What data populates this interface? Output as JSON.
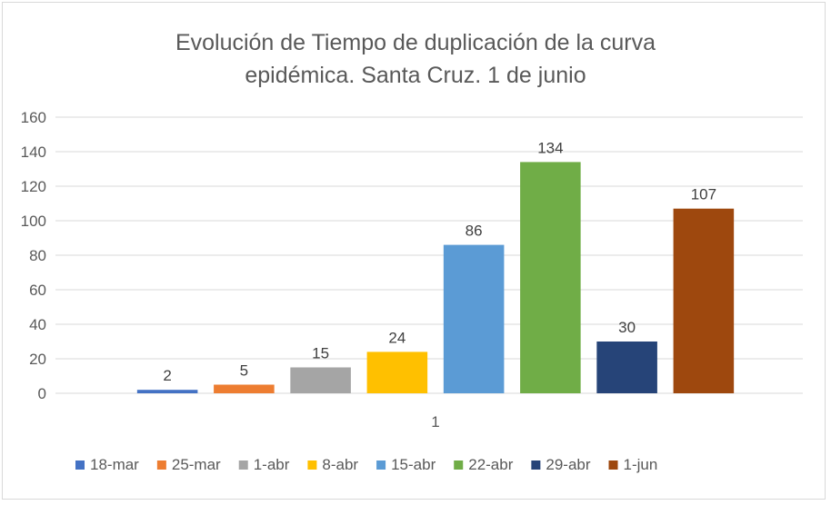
{
  "chart_data": {
    "type": "bar",
    "title_line1": "Evolución de Tiempo de duplicación de la curva",
    "title_line2": "epidémica. Santa Cruz. 1 de junio",
    "categories": [
      "1"
    ],
    "xlabel": "",
    "ylabel": "",
    "ylim": [
      0,
      160
    ],
    "yticks": [
      0,
      20,
      40,
      60,
      80,
      100,
      120,
      140,
      160
    ],
    "grid": true,
    "legend_position": "bottom",
    "series": [
      {
        "name": "18-mar",
        "values": [
          2
        ],
        "color": "#4472c4"
      },
      {
        "name": "25-mar",
        "values": [
          5
        ],
        "color": "#ed7d31"
      },
      {
        "name": "1-abr",
        "values": [
          15
        ],
        "color": "#a5a5a5"
      },
      {
        "name": "8-abr",
        "values": [
          24
        ],
        "color": "#ffc000"
      },
      {
        "name": "15-abr",
        "values": [
          86
        ],
        "color": "#5b9bd5"
      },
      {
        "name": "22-abr",
        "values": [
          134
        ],
        "color": "#70ad47"
      },
      {
        "name": "29-abr",
        "values": [
          30
        ],
        "color": "#264478"
      },
      {
        "name": "1-jun",
        "values": [
          107
        ],
        "color": "#9e480e"
      }
    ]
  }
}
